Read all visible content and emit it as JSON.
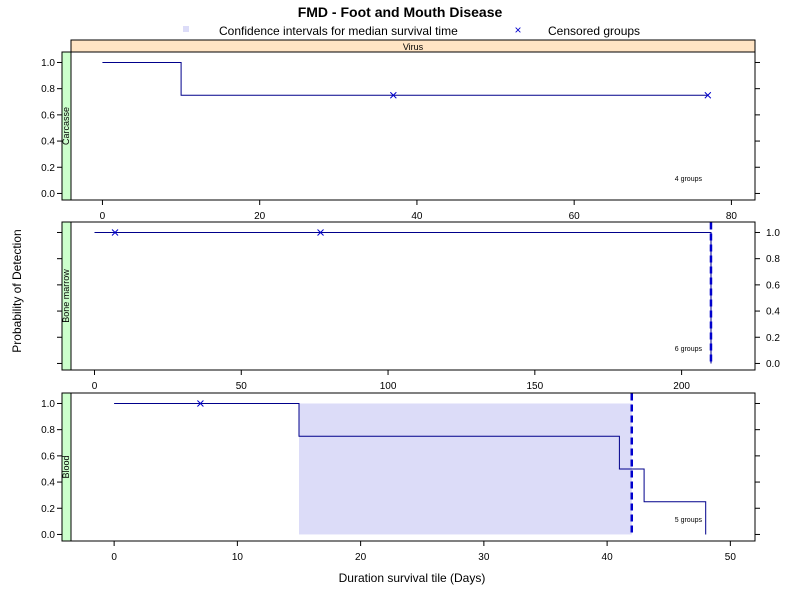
{
  "title": "FMD - Foot and Mouth Disease",
  "legend": {
    "ci_label": "Confidence intervals for median survival time",
    "censored_label": "Censored groups",
    "ci_color": "#dcdcf8",
    "censored_color": "#0000cd"
  },
  "top_strip": "Virus",
  "xlabel": "Duration survival tile (Days)",
  "ylabel": "Probability of Detection",
  "colors": {
    "curve": "#00008b",
    "median_line": "#0000cd",
    "ci_fill": "#dcdcf8",
    "strip_top": "#ffe4c4",
    "strip_side": "#ccffcc"
  },
  "chart_data": [
    {
      "type": "line",
      "panel": "Carcasse",
      "xlim": [
        -4,
        83
      ],
      "ylim": [
        -0.05,
        1.08
      ],
      "xticks": [
        0,
        20,
        40,
        60,
        80
      ],
      "yticks": [
        0.0,
        0.2,
        0.4,
        0.6,
        0.8,
        1.0
      ],
      "ytick_labels": [
        "0.0",
        "0.2",
        "0.4",
        "0.6",
        "0.8",
        "1.0"
      ],
      "y_axis_side": "left",
      "x_axis_side": "bottom",
      "step_x": [
        0,
        10,
        10,
        77
      ],
      "step_y": [
        1.0,
        1.0,
        0.75,
        0.75
      ],
      "censored_x": [
        37,
        77
      ],
      "censored_y": [
        0.75,
        0.75
      ],
      "median": null,
      "ci": null,
      "groups_note": "4 groups"
    },
    {
      "type": "line",
      "panel": "Bone marrow",
      "xlim": [
        -8,
        225
      ],
      "ylim": [
        -0.05,
        1.08
      ],
      "xticks": [
        0,
        50,
        100,
        150,
        200
      ],
      "yticks": [
        0.0,
        0.2,
        0.4,
        0.6,
        0.8,
        1.0
      ],
      "ytick_labels": [
        "0.0",
        "0.2",
        "0.4",
        "0.6",
        "0.8",
        "1.0"
      ],
      "y_axis_side": "right",
      "x_axis_side": "bottom",
      "step_x": [
        0,
        210,
        210
      ],
      "step_y": [
        1.0,
        1.0,
        0.0
      ],
      "censored_x": [
        7,
        77
      ],
      "censored_y": [
        1.0,
        1.0
      ],
      "median": 210,
      "ci": null,
      "groups_note": "6 groups"
    },
    {
      "type": "line",
      "panel": "Blood",
      "xlim": [
        -3.5,
        52
      ],
      "ylim": [
        -0.05,
        1.08
      ],
      "xticks": [
        0,
        10,
        20,
        30,
        40,
        50
      ],
      "yticks": [
        0.0,
        0.2,
        0.4,
        0.6,
        0.8,
        1.0
      ],
      "ytick_labels": [
        "0.0",
        "0.2",
        "0.4",
        "0.6",
        "0.8",
        "1.0"
      ],
      "y_axis_side": "left",
      "x_axis_side": "bottom",
      "step_x": [
        0,
        15,
        15,
        41,
        41,
        43,
        43,
        48,
        48
      ],
      "step_y": [
        1.0,
        1.0,
        0.75,
        0.75,
        0.5,
        0.5,
        0.25,
        0.25,
        0.0
      ],
      "censored_x": [
        7
      ],
      "censored_y": [
        1.0
      ],
      "median": 42,
      "ci": [
        15,
        42
      ],
      "groups_note": "5 groups"
    }
  ]
}
